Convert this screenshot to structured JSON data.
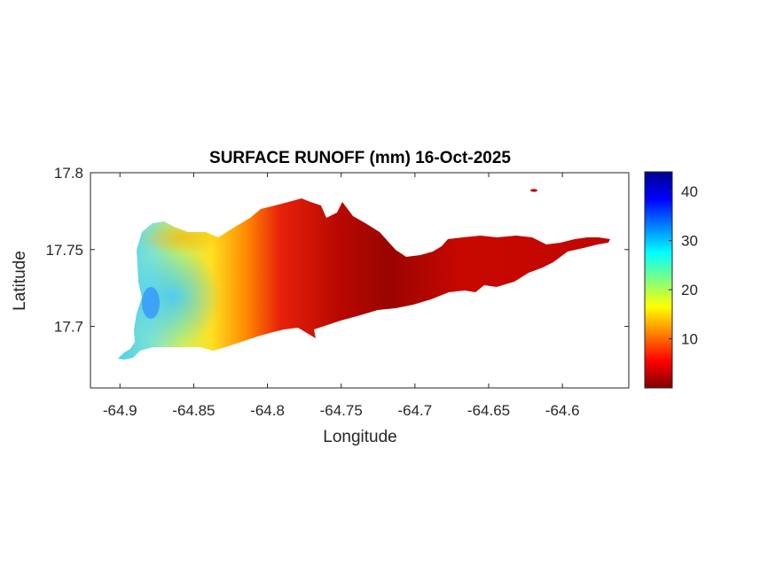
{
  "map": {
    "title": "SURFACE RUNOFF (mm) 16-Oct-2025",
    "xlabel": "Longitude",
    "ylabel": "Latitude",
    "xlim": [
      -64.92,
      -64.555
    ],
    "ylim": [
      17.66,
      17.8
    ],
    "x_ticks": [
      -64.9,
      -64.85,
      -64.8,
      -64.75,
      -64.7,
      -64.65,
      -64.6
    ],
    "x_tick_labels": [
      "-64.9",
      "-64.85",
      "-64.8",
      "-64.75",
      "-64.7",
      "-64.65",
      "-64.6"
    ],
    "y_ticks": [
      17.7,
      17.75,
      17.8
    ],
    "y_tick_labels": [
      "17.7",
      "17.75",
      "17.8"
    ],
    "colorbar": {
      "colormap": "jet",
      "range": [
        0,
        44
      ],
      "ticks": [
        10,
        20,
        30,
        40
      ],
      "tick_labels": [
        "10",
        "20",
        "30",
        "40"
      ]
    },
    "colors": {
      "high": "#00008f",
      "low": "#800000",
      "axes": "#262626"
    }
  }
}
